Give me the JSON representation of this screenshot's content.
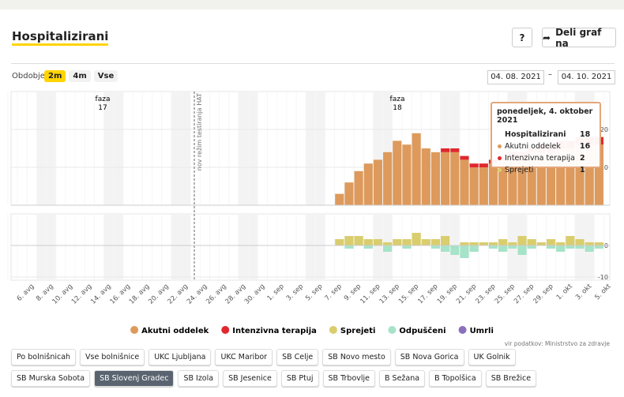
{
  "header": {
    "title": "Hospitalizirani",
    "help": "?",
    "share": "Deli graf na"
  },
  "period": {
    "label": "Obdobje",
    "options": [
      "2m",
      "4m",
      "Vse"
    ],
    "selected_index": 0,
    "from": "04. 08. 2021",
    "separator": "–",
    "to": "04. 10. 2021"
  },
  "chart_data": [
    {
      "type": "bar",
      "stacked": true,
      "ylim": [
        0,
        30
      ],
      "yticks": [
        10,
        20
      ],
      "annotations": [
        {
          "text": "faza",
          "label": "17"
        },
        {
          "text": "faza",
          "label": "18"
        },
        {
          "text": "nov režim testiranja HAT"
        }
      ],
      "series": [
        {
          "name": "Akutni oddelek",
          "color": "#dd9a5c",
          "values": [
            null,
            null,
            null,
            null,
            null,
            null,
            null,
            null,
            null,
            null,
            null,
            null,
            null,
            null,
            null,
            null,
            null,
            null,
            null,
            null,
            null,
            null,
            null,
            null,
            null,
            null,
            null,
            null,
            null,
            null,
            null,
            null,
            null,
            null,
            3,
            6,
            9,
            11,
            12,
            14,
            17,
            16,
            19,
            15,
            14,
            14,
            14,
            12,
            10,
            10,
            11,
            12,
            13,
            13,
            14,
            14,
            14,
            15,
            15,
            16,
            16,
            16,
            null
          ]
        },
        {
          "name": "Intenzivna terapija",
          "color": "#e0282e",
          "values": [
            null,
            null,
            null,
            null,
            null,
            null,
            null,
            null,
            null,
            null,
            null,
            null,
            null,
            null,
            null,
            null,
            null,
            null,
            null,
            null,
            null,
            null,
            null,
            null,
            null,
            null,
            null,
            null,
            null,
            null,
            null,
            null,
            null,
            null,
            0,
            0,
            0,
            0,
            0,
            0,
            0,
            0,
            0,
            0,
            0,
            1,
            1,
            1,
            1,
            1,
            1,
            1,
            1,
            1,
            1,
            2,
            2,
            2,
            2,
            2,
            2,
            2,
            null
          ]
        }
      ]
    },
    {
      "type": "bar",
      "ylim": [
        -11,
        10
      ],
      "yticks": [
        0,
        -10
      ],
      "categories": [
        null,
        null,
        "6. avg",
        null,
        "8. avg",
        null,
        "10. avg",
        null,
        "12. avg",
        null,
        "14. avg",
        null,
        "16. avg",
        null,
        "18. avg",
        null,
        "20. avg",
        null,
        "22. avg",
        null,
        "24. avg",
        null,
        "26. avg",
        null,
        "28. avg",
        null,
        "30. avg",
        null,
        "1. sep",
        null,
        "3. sep",
        null,
        "5. sep",
        null,
        "7. sep",
        null,
        "9. sep",
        null,
        "11. sep",
        null,
        "13. sep",
        null,
        "15. sep",
        null,
        "17. sep",
        null,
        "19. sep",
        null,
        "21. sep",
        null,
        "23. sep",
        null,
        "25. sep",
        null,
        "27. sep",
        null,
        "29. sep",
        null,
        "1. okt",
        null,
        "3. okt",
        null,
        "5. okt"
      ],
      "series": [
        {
          "name": "Sprejeti",
          "color": "#d9cd6e",
          "values": [
            null,
            null,
            null,
            null,
            null,
            null,
            null,
            null,
            null,
            null,
            null,
            null,
            null,
            null,
            null,
            null,
            null,
            null,
            null,
            null,
            null,
            null,
            null,
            null,
            null,
            null,
            null,
            null,
            null,
            null,
            null,
            null,
            null,
            null,
            2,
            3,
            3,
            2,
            2,
            1,
            2,
            2,
            4,
            2,
            2,
            3,
            0,
            1,
            1,
            1,
            1,
            2,
            1,
            3,
            2,
            1,
            2,
            1,
            3,
            2,
            1,
            1,
            null
          ]
        },
        {
          "name": "Odpuščeni",
          "color": "#a6e3c8",
          "values": [
            null,
            null,
            null,
            null,
            null,
            null,
            null,
            null,
            null,
            null,
            null,
            null,
            null,
            null,
            null,
            null,
            null,
            null,
            null,
            null,
            null,
            null,
            null,
            null,
            null,
            null,
            null,
            null,
            null,
            null,
            null,
            null,
            null,
            null,
            0,
            -1,
            0,
            -1,
            0,
            -2,
            0,
            -1,
            0,
            0,
            -1,
            -2,
            -3,
            -4,
            -2,
            0,
            -1,
            -2,
            -1,
            -3,
            -1,
            0,
            -1,
            -2,
            -1,
            -1,
            -2,
            -1,
            null
          ]
        },
        {
          "name": "Umrli",
          "color": "#8c6fbd",
          "values": [
            null,
            null,
            null,
            null,
            null,
            null,
            null,
            null,
            null,
            null,
            null,
            null,
            null,
            null,
            null,
            null,
            null,
            null,
            null,
            null,
            null,
            null,
            null,
            null,
            null,
            null,
            null,
            null,
            null,
            null,
            null,
            null,
            null,
            null,
            null,
            null,
            null,
            null,
            null,
            null,
            null,
            null,
            null,
            null,
            null,
            null,
            null,
            null,
            null,
            null,
            null,
            null,
            null,
            null,
            null,
            null,
            null,
            null,
            null,
            null,
            null,
            null,
            null
          ]
        }
      ]
    }
  ],
  "tooltip": {
    "title": "ponedeljek, 4. oktober 2021",
    "rows": [
      [
        "Hospitalizirani",
        "18"
      ],
      [
        "Akutni oddelek",
        "16"
      ],
      [
        "Intenzivna terapija",
        "2"
      ],
      [
        "Sprejeti",
        "1"
      ]
    ]
  },
  "source": "vir podatkov: Ministrstvo za zdravje",
  "hospitals": [
    "Po bolnišnicah",
    "Vse bolnišnice",
    "UKC Ljubljana",
    "UKC Maribor",
    "SB Celje",
    "SB Novo mesto",
    "SB Nova Gorica",
    "UK Golnik",
    "SB Murska Sobota",
    "SB Slovenj Gradec",
    "SB Izola",
    "SB Jesenice",
    "SB Ptuj",
    "SB Trbovlje",
    "B Sežana",
    "B Topolšica",
    "SB Brežice"
  ],
  "selected_hospital_index": 9
}
